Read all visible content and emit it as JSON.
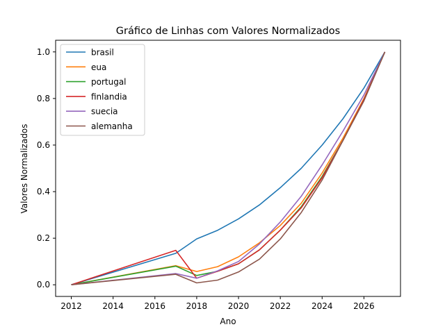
{
  "chart_data": {
    "type": "line",
    "title": "Gráfico de Linhas com Valores Normalizados",
    "xlabel": "Ano",
    "ylabel": "Valores Normalizados",
    "xlim": [
      2011.25,
      2027.75
    ],
    "ylim": [
      -0.05,
      1.05
    ],
    "x": [
      2012,
      2017,
      2018,
      2019,
      2020,
      2021,
      2022,
      2023,
      2024,
      2025,
      2026,
      2027
    ],
    "xticks": [
      2012,
      2014,
      2016,
      2018,
      2020,
      2022,
      2024,
      2026
    ],
    "xtick_labels": [
      "2012",
      "2014",
      "2016",
      "2018",
      "2020",
      "2022",
      "2024",
      "2026"
    ],
    "yticks": [
      0.0,
      0.2,
      0.4,
      0.6,
      0.8,
      1.0
    ],
    "ytick_labels": [
      "0.0",
      "0.2",
      "0.4",
      "0.6",
      "0.8",
      "1.0"
    ],
    "legend_position": "top-left",
    "grid": false,
    "series": [
      {
        "name": "brasil",
        "color": "#1f77b4",
        "values": [
          0.0,
          0.135,
          0.197,
          0.234,
          0.283,
          0.343,
          0.417,
          0.5,
          0.6,
          0.713,
          0.845,
          1.0
        ]
      },
      {
        "name": "eua",
        "color": "#ff7f0e",
        "values": [
          0.0,
          0.082,
          0.057,
          0.078,
          0.12,
          0.18,
          0.255,
          0.35,
          0.48,
          0.63,
          0.8,
          1.0
        ]
      },
      {
        "name": "portugal",
        "color": "#2ca02c",
        "values": [
          0.0,
          0.08,
          0.04,
          0.058,
          0.09,
          0.15,
          0.235,
          0.335,
          0.465,
          0.62,
          0.795,
          1.0
        ]
      },
      {
        "name": "finlandia",
        "color": "#d62728",
        "values": [
          0.0,
          0.148,
          0.028,
          0.058,
          0.09,
          0.15,
          0.235,
          0.33,
          0.46,
          0.62,
          0.795,
          1.0
        ]
      },
      {
        "name": "suecia",
        "color": "#9467bd",
        "values": [
          0.0,
          0.048,
          0.028,
          0.06,
          0.1,
          0.175,
          0.27,
          0.38,
          0.515,
          0.66,
          0.815,
          1.0
        ]
      },
      {
        "name": "alemanha",
        "color": "#8c564b",
        "values": [
          0.0,
          0.045,
          0.008,
          0.02,
          0.055,
          0.11,
          0.197,
          0.31,
          0.45,
          0.62,
          0.79,
          1.0
        ]
      }
    ]
  }
}
